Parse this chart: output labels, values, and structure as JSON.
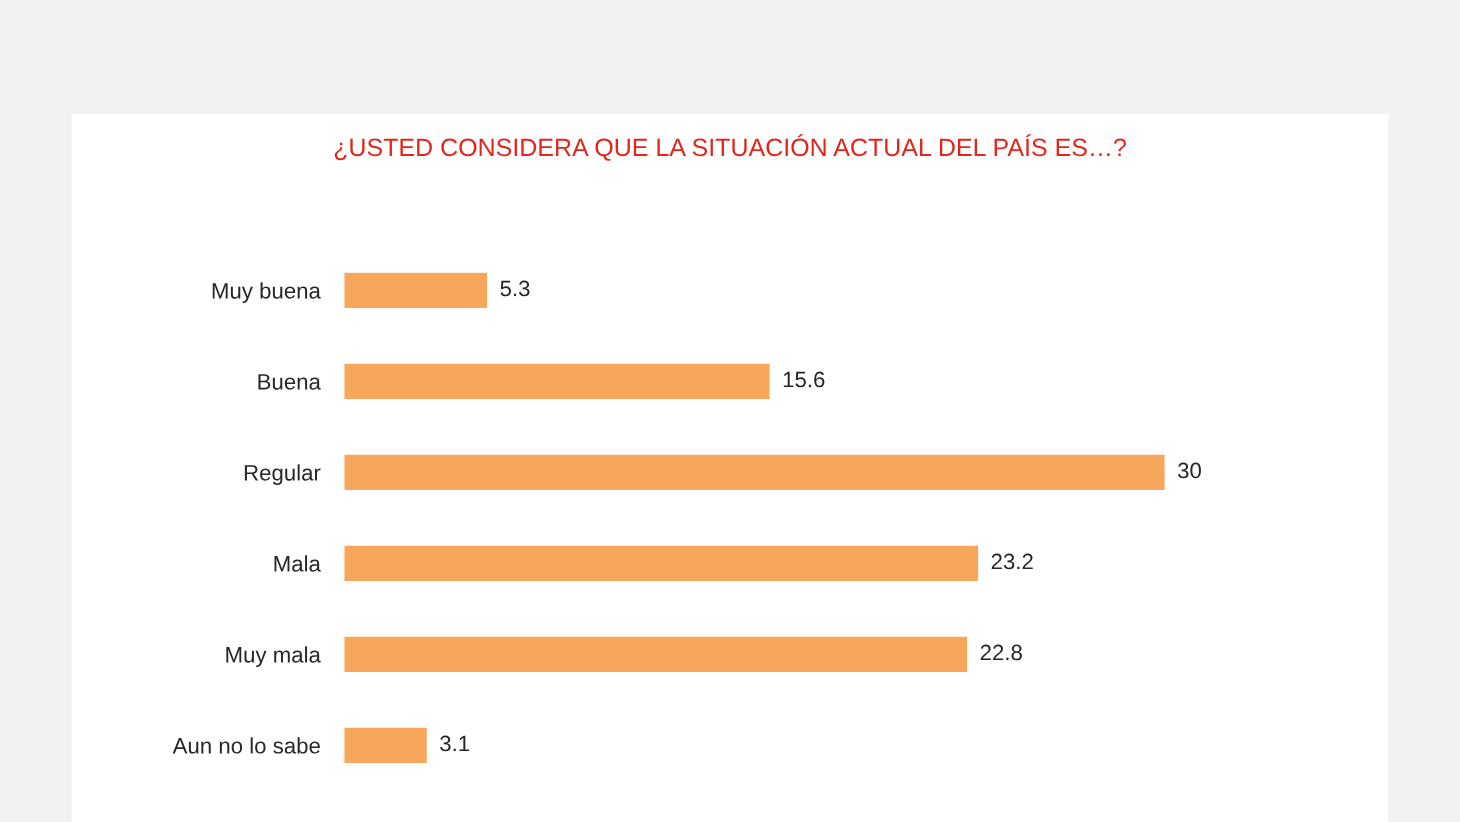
{
  "chart_data": {
    "type": "bar",
    "orientation": "horizontal",
    "title": "¿USTED CONSIDERA QUE LA SITUACIÓN ACTUAL DEL PAÍS ES…?",
    "categories": [
      "Muy buena",
      "Buena",
      "Regular",
      "Mala",
      "Muy mala",
      "Aun no lo sabe"
    ],
    "values": [
      5.3,
      15.6,
      30,
      23.2,
      22.8,
      3.1
    ],
    "color": "#f7a75b",
    "data_labels": true,
    "grid": false,
    "legend": false
  }
}
